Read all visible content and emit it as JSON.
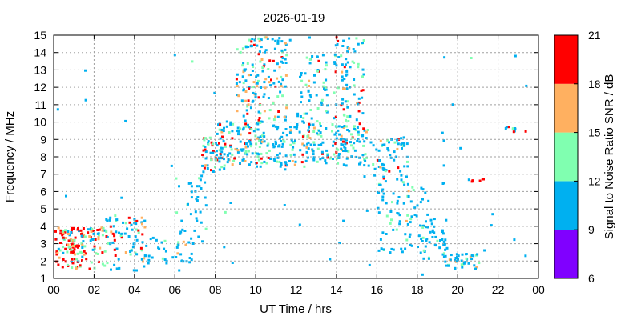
{
  "chart_data": {
    "type": "heatmap",
    "title": "2026-01-19",
    "xlabel": "UT Time / hrs",
    "ylabel": "Frequency / MHz",
    "xlim": [
      0,
      24
    ],
    "ylim": [
      1,
      15
    ],
    "x_ticks": [
      "00",
      "02",
      "04",
      "06",
      "08",
      "10",
      "12",
      "14",
      "16",
      "18",
      "20",
      "22",
      "00"
    ],
    "y_ticks": [
      "1",
      "2",
      "3",
      "4",
      "5",
      "6",
      "7",
      "8",
      "9",
      "10",
      "11",
      "12",
      "13",
      "14",
      "15"
    ],
    "grid": true,
    "colorbar": {
      "label": "Signal to Noise Ratio SNR / dB",
      "range": [
        6,
        21
      ],
      "ticks": [
        "6",
        "9",
        "12",
        "15",
        "18",
        "21"
      ],
      "bands": [
        {
          "from": 6,
          "to": 9,
          "color": "#8000ff"
        },
        {
          "from": 9,
          "to": 12,
          "color": "#00b0f0"
        },
        {
          "from": 12,
          "to": 15,
          "color": "#80ffb0"
        },
        {
          "from": 15,
          "to": 18,
          "color": "#ffb060"
        },
        {
          "from": 18,
          "to": 21,
          "color": "#ff0000"
        }
      ]
    },
    "regions": [
      {
        "t": [
          0.0,
          1.0
        ],
        "f": [
          1.6,
          4.0
        ],
        "n": 70,
        "dist": [
          0.1,
          0.2,
          0.2,
          0.5
        ]
      },
      {
        "t": [
          1.0,
          2.5
        ],
        "f": [
          1.6,
          4.0
        ],
        "n": 80,
        "dist": [
          0.2,
          0.25,
          0.2,
          0.35
        ]
      },
      {
        "t": [
          2.5,
          4.5
        ],
        "f": [
          1.5,
          4.6
        ],
        "n": 80,
        "dist": [
          0.5,
          0.2,
          0.1,
          0.2
        ]
      },
      {
        "t": [
          4.5,
          6.8
        ],
        "f": [
          1.8,
          3.5
        ],
        "n": 35,
        "dist": [
          0.85,
          0.1,
          0.05,
          0.0
        ]
      },
      {
        "t": [
          6.0,
          7.5
        ],
        "f": [
          3.0,
          7.0
        ],
        "n": 40,
        "dist": [
          0.85,
          0.15,
          0.0,
          0.0
        ]
      },
      {
        "t": [
          7.3,
          8.5
        ],
        "f": [
          7.2,
          9.2
        ],
        "n": 50,
        "dist": [
          0.5,
          0.25,
          0.1,
          0.15
        ]
      },
      {
        "t": [
          8.0,
          11.5
        ],
        "f": [
          7.5,
          10.2
        ],
        "n": 170,
        "dist": [
          0.6,
          0.2,
          0.08,
          0.12
        ]
      },
      {
        "t": [
          9.0,
          11.5
        ],
        "f": [
          10.2,
          15.0
        ],
        "n": 150,
        "dist": [
          0.55,
          0.2,
          0.12,
          0.13
        ]
      },
      {
        "t": [
          11.5,
          15.5
        ],
        "f": [
          7.5,
          10.0
        ],
        "n": 170,
        "dist": [
          0.6,
          0.25,
          0.08,
          0.07
        ]
      },
      {
        "t": [
          12.0,
          13.5
        ],
        "f": [
          10.0,
          14.0
        ],
        "n": 60,
        "dist": [
          0.7,
          0.2,
          0.05,
          0.05
        ]
      },
      {
        "t": [
          13.8,
          15.3
        ],
        "f": [
          10.0,
          15.0
        ],
        "n": 80,
        "dist": [
          0.55,
          0.2,
          0.1,
          0.15
        ]
      },
      {
        "t": [
          15.3,
          17.5
        ],
        "f": [
          6.4,
          9.2
        ],
        "n": 70,
        "dist": [
          0.6,
          0.15,
          0.1,
          0.15
        ]
      },
      {
        "t": [
          16.0,
          18.5
        ],
        "f": [
          2.5,
          6.5
        ],
        "n": 80,
        "dist": [
          0.8,
          0.15,
          0.05,
          0.0
        ]
      },
      {
        "t": [
          18.0,
          19.5
        ],
        "f": [
          2.2,
          4.5
        ],
        "n": 40,
        "dist": [
          0.8,
          0.15,
          0.05,
          0.0
        ]
      },
      {
        "t": [
          19.2,
          21.0
        ],
        "f": [
          1.6,
          2.6
        ],
        "n": 40,
        "dist": [
          0.8,
          0.1,
          0.1,
          0.0
        ]
      },
      {
        "t": [
          20.5,
          21.5
        ],
        "f": [
          6.6,
          6.9
        ],
        "n": 6,
        "dist": [
          0.2,
          0.0,
          0.0,
          0.8
        ]
      },
      {
        "t": [
          22.3,
          23.5
        ],
        "f": [
          9.5,
          9.8
        ],
        "n": 10,
        "dist": [
          0.5,
          0.2,
          0.0,
          0.3
        ]
      },
      {
        "t": [
          0.0,
          24.0
        ],
        "f": [
          1.0,
          15.0
        ],
        "n": 60,
        "dist": [
          0.9,
          0.1,
          0.0,
          0.0
        ]
      }
    ]
  }
}
